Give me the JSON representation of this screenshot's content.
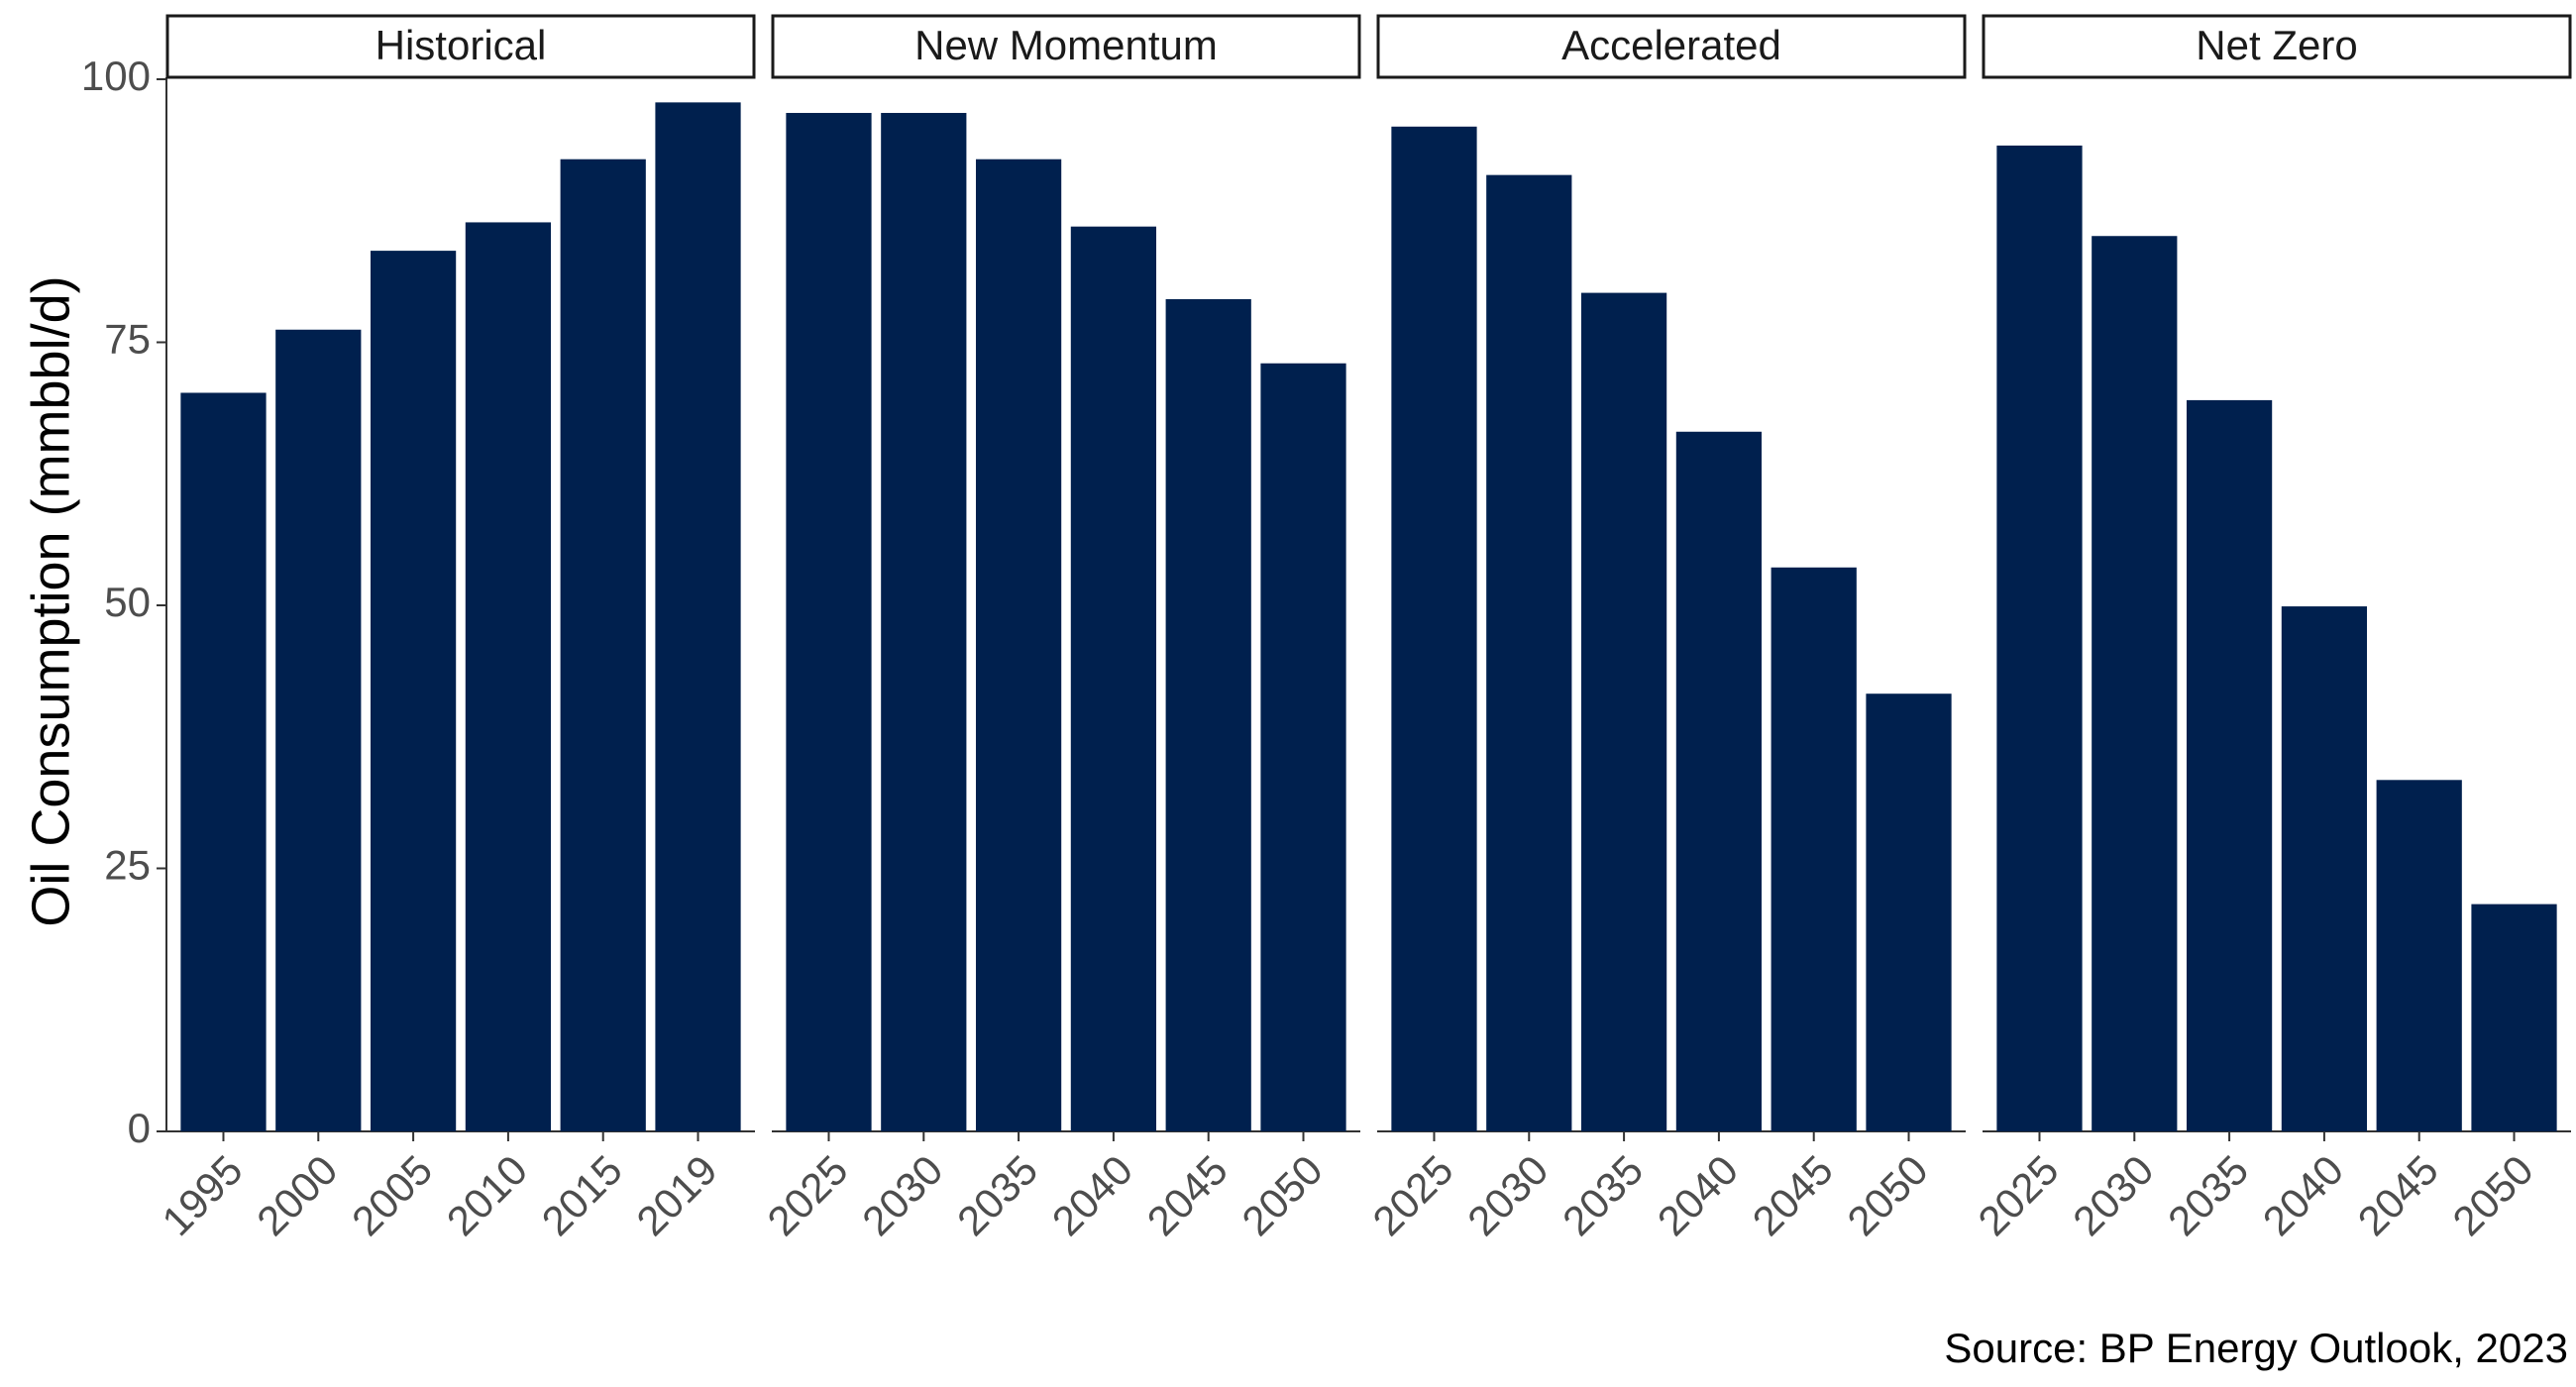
{
  "chart_data": {
    "type": "bar",
    "layout": "facets",
    "ylabel": "Oil Consumption (mmbbl/d)",
    "xlabel": "",
    "ylim": [
      0,
      100
    ],
    "yticks": [
      0,
      25,
      50,
      75,
      100
    ],
    "grid": false,
    "bar_color": "#00204E",
    "caption": "Source: BP Energy Outlook, 2023",
    "facets": [
      {
        "label": "Historical",
        "categories": [
          "1995",
          "2000",
          "2005",
          "2010",
          "2015",
          "2019"
        ],
        "values": [
          70.2,
          76.2,
          83.7,
          86.4,
          92.4,
          97.8
        ]
      },
      {
        "label": "New Momentum",
        "categories": [
          "2025",
          "2030",
          "2035",
          "2040",
          "2045",
          "2050"
        ],
        "values": [
          96.8,
          96.8,
          92.4,
          86.0,
          79.1,
          73.0
        ]
      },
      {
        "label": "Accelerated",
        "categories": [
          "2025",
          "2030",
          "2035",
          "2040",
          "2045",
          "2050"
        ],
        "values": [
          95.5,
          90.9,
          79.7,
          66.5,
          53.6,
          41.6
        ]
      },
      {
        "label": "Net Zero",
        "categories": [
          "2025",
          "2030",
          "2035",
          "2040",
          "2045",
          "2050"
        ],
        "values": [
          93.7,
          85.1,
          69.5,
          49.9,
          33.4,
          21.6
        ]
      }
    ]
  }
}
